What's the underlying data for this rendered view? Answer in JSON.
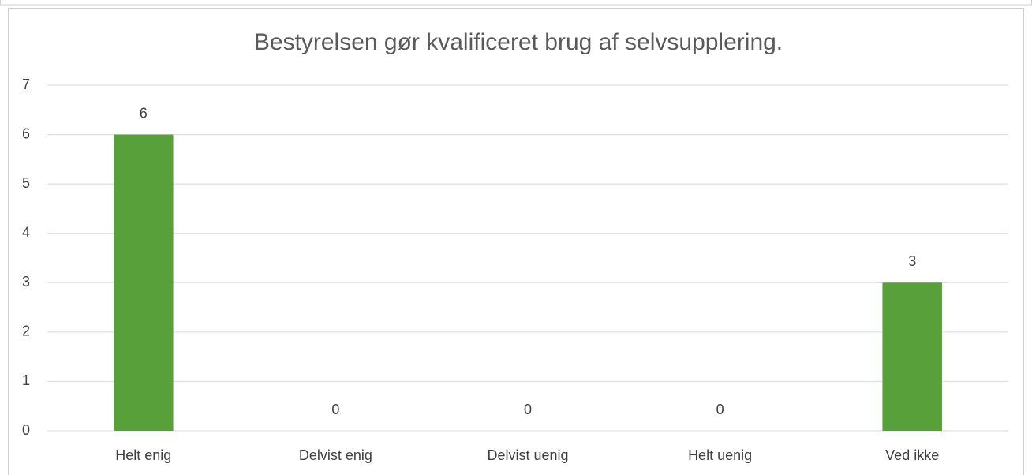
{
  "chart_data": {
    "type": "bar",
    "title": "Bestyrelsen gør kvalificeret brug af selvsupplering.",
    "categories": [
      "Helt enig",
      "Delvist enig",
      "Delvist uenig",
      "Helt uenig",
      "Ved ikke"
    ],
    "values": [
      6,
      0,
      0,
      0,
      3
    ],
    "color": "#58a03a",
    "ylim": [
      0,
      7
    ],
    "yticks": [
      0,
      1,
      2,
      3,
      4,
      5,
      6,
      7
    ],
    "grid": true
  }
}
